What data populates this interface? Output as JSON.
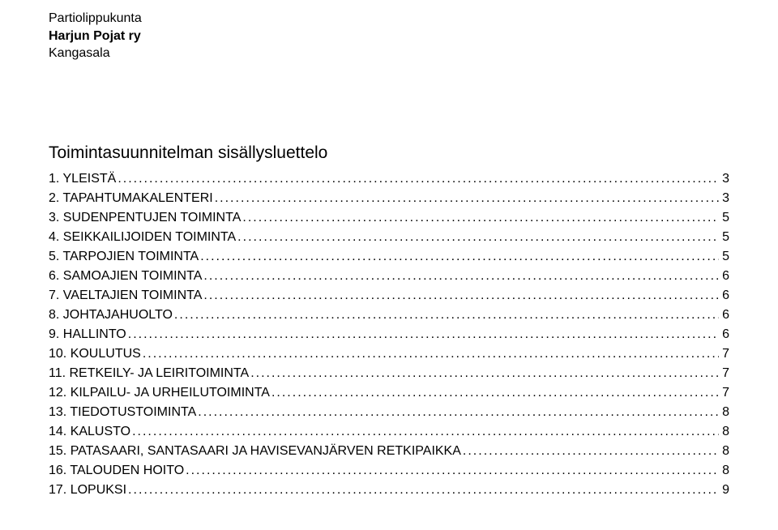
{
  "header": {
    "line1": "Partiolippukunta",
    "line2": "Harjun Pojat ry",
    "line3": "Kangasala"
  },
  "title": "Toimintasuunnitelman sisällysluettelo",
  "toc": [
    {
      "label": "1. YLEISTÄ",
      "page": "3"
    },
    {
      "label": "2. TAPAHTUMAKALENTERI",
      "page": "3"
    },
    {
      "label": "3. SUDENPENTUJEN TOIMINTA",
      "page": "5"
    },
    {
      "label": "4. SEIKKAILIJOIDEN TOIMINTA",
      "page": "5"
    },
    {
      "label": "5. TARPOJIEN TOIMINTA",
      "page": "5"
    },
    {
      "label": "6. SAMOAJIEN TOIMINTA",
      "page": "6"
    },
    {
      "label": "7. VAELTAJIEN TOIMINTA",
      "page": "6"
    },
    {
      "label": "8. JOHTAJAHUOLTO",
      "page": "6"
    },
    {
      "label": "9. HALLINTO",
      "page": "6"
    },
    {
      "label": "10. KOULUTUS",
      "page": "7"
    },
    {
      "label": "11. RETKEILY- JA LEIRITOIMINTA",
      "page": "7"
    },
    {
      "label": "12. KILPAILU- JA URHEILUTOIMINTA",
      "page": "7"
    },
    {
      "label": "13. TIEDOTUSTOIMINTA",
      "page": "8"
    },
    {
      "label": "14. KALUSTO",
      "page": "8"
    },
    {
      "label": "15. PATASAARI, SANTASAARI JA HAVISEVANJÄRVEN RETKIPAIKKA",
      "page": "8"
    },
    {
      "label": "16. TALOUDEN HOITO",
      "page": "8"
    },
    {
      "label": "17. LOPUKSI",
      "page": "9"
    }
  ]
}
